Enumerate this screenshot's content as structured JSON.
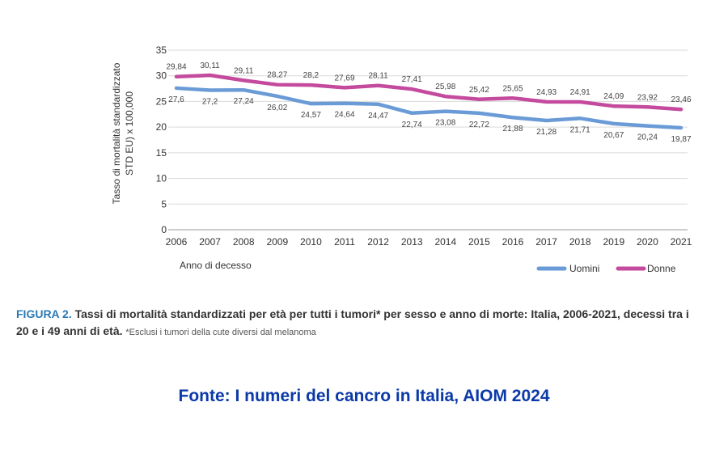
{
  "chart_data": {
    "type": "line",
    "x": [
      "2006",
      "2007",
      "2008",
      "2009",
      "2010",
      "2011",
      "2012",
      "2013",
      "2014",
      "2015",
      "2016",
      "2017",
      "2018",
      "2019",
      "2020",
      "2021"
    ],
    "series": [
      {
        "name": "Uomini",
        "color": "#6a9bd6",
        "values": [
          27.6,
          27.2,
          27.24,
          26.02,
          24.57,
          24.64,
          24.47,
          22.74,
          23.08,
          22.72,
          21.88,
          21.28,
          21.71,
          20.67,
          20.24,
          19.87
        ],
        "labels": [
          "27,6",
          "27,2",
          "27,24",
          "26,02",
          "24,57",
          "24,64",
          "24,47",
          "22,74",
          "23,08",
          "22,72",
          "21,88",
          "21,28",
          "21,71",
          "20,67",
          "20,24",
          "19,87"
        ]
      },
      {
        "name": "Donne",
        "color": "#c44a9e",
        "values": [
          29.84,
          30.11,
          29.11,
          28.27,
          28.2,
          27.69,
          28.11,
          27.41,
          25.98,
          25.42,
          25.65,
          24.93,
          24.91,
          24.09,
          23.92,
          23.46
        ],
        "labels": [
          "29,84",
          "30,11",
          "29,11",
          "28,27",
          "28,2",
          "27,69",
          "28,11",
          "27,41",
          "25,98",
          "25,42",
          "25,65",
          "24,93",
          "24,91",
          "24,09",
          "23,92",
          "23,46"
        ]
      }
    ],
    "ylim": [
      0,
      35
    ],
    "yticks": [
      "0",
      "5",
      "10",
      "15",
      "20",
      "25",
      "30",
      "35"
    ],
    "ylabel_line1": "Tasso di mortalità standardizzato",
    "ylabel_line2": "STD EU) x 100,000",
    "xlabel": "Anno di decesso",
    "legend_position": "bottom-right",
    "grid": true
  },
  "caption": {
    "figure_label": "FIGURA 2.",
    "text": "Tassi di mortalità standardizzati per età per tutti i tumori* per sesso e anno di morte: Italia, 2006-2021, decessi tra i 20 e i 49 anni di età.",
    "note": "*Esclusi i tumori della cute diversi dal melanoma"
  },
  "source": "Fonte: I numeri del cancro in Italia, AIOM 2024"
}
